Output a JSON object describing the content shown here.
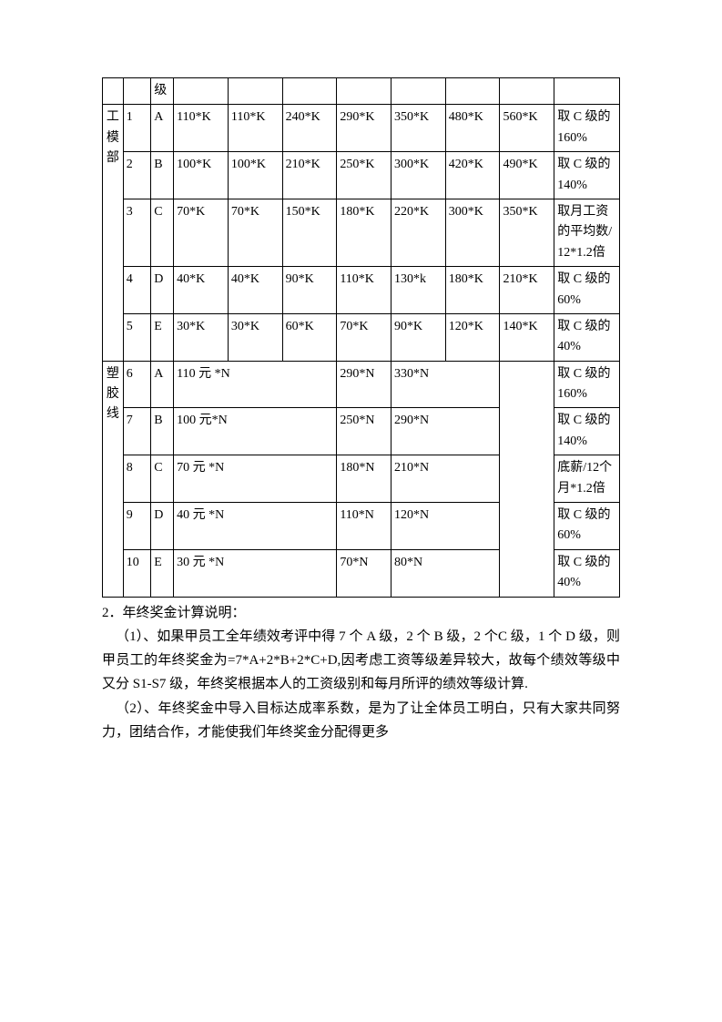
{
  "table": {
    "header_row": {
      "c2": "级"
    },
    "section1": {
      "dept": "工模部",
      "rows": [
        {
          "n": "1",
          "g": "A",
          "v": [
            "110*K",
            "110*K",
            "240*K",
            "290*K",
            "350*K",
            "480*K",
            "560*K"
          ],
          "r": "取 C 级的 160%"
        },
        {
          "n": "2",
          "g": "B",
          "v": [
            "100*K",
            "100*K",
            "210*K",
            "250*K",
            "300*K",
            "420*K",
            "490*K"
          ],
          "r": "取 C 级的 140%"
        },
        {
          "n": "3",
          "g": "C",
          "v": [
            "70*K",
            "70*K",
            "150*K",
            "180*K",
            "220*K",
            "300*K",
            "350*K"
          ],
          "r": "取月工资的平均数/12*1.2倍"
        },
        {
          "n": "4",
          "g": "D",
          "v": [
            "40*K",
            "40*K",
            "90*K",
            "110*K",
            "130*k",
            "180*K",
            "210*K"
          ],
          "r": "取 C 级的 60%"
        },
        {
          "n": "5",
          "g": "E",
          "v": [
            "30*K",
            "30*K",
            "60*K",
            "70*K",
            "90*K",
            "120*K",
            "140*K"
          ],
          "r": "取 C 级的 40%"
        }
      ]
    },
    "section2": {
      "dept": "塑胶线",
      "rows": [
        {
          "n": "6",
          "g": "A",
          "v1": "110 元 *N",
          "v2": "290*N",
          "v3": "330*N",
          "r": "取 C 级的 160%"
        },
        {
          "n": "7",
          "g": "B",
          "v1": "100 元*N",
          "v2": "250*N",
          "v3": "290*N",
          "r": "取 C 级的 140%"
        },
        {
          "n": "8",
          "g": "C",
          "v1": "70 元 *N",
          "v2": "180*N",
          "v3": "210*N",
          "r": "底薪/12个月*1.2倍"
        },
        {
          "n": "9",
          "g": "D",
          "v1": "40 元 *N",
          "v2": "110*N",
          "v3": "120*N",
          "r": "取 C 级的 60%"
        },
        {
          "n": "10",
          "g": "E",
          "v1": "30 元 *N",
          "v2": "70*N",
          "v3": "80*N",
          "r": "取 C 级的 40%"
        }
      ]
    }
  },
  "text": {
    "line1": "2．年终奖金计算说明：",
    "line2": "（1）、如果甲员工全年绩效考评中得 7 个 A 级，2 个 B 级，2 个C 级，1 个 D 级，则甲员工的年终奖金为=7*A+2*B+2*C+D,因考虑工资等级差异较大，故每个绩效等级中又分 S1-S7 级，年终奖根据本人的工资级别和每月所评的绩效等级计算.",
    "line3": "（2）、年终奖金中导入目标达成率系数，是为了让全体员工明白，只有大家共同努力，团结合作，才能使我们年终奖金分配得更多"
  }
}
